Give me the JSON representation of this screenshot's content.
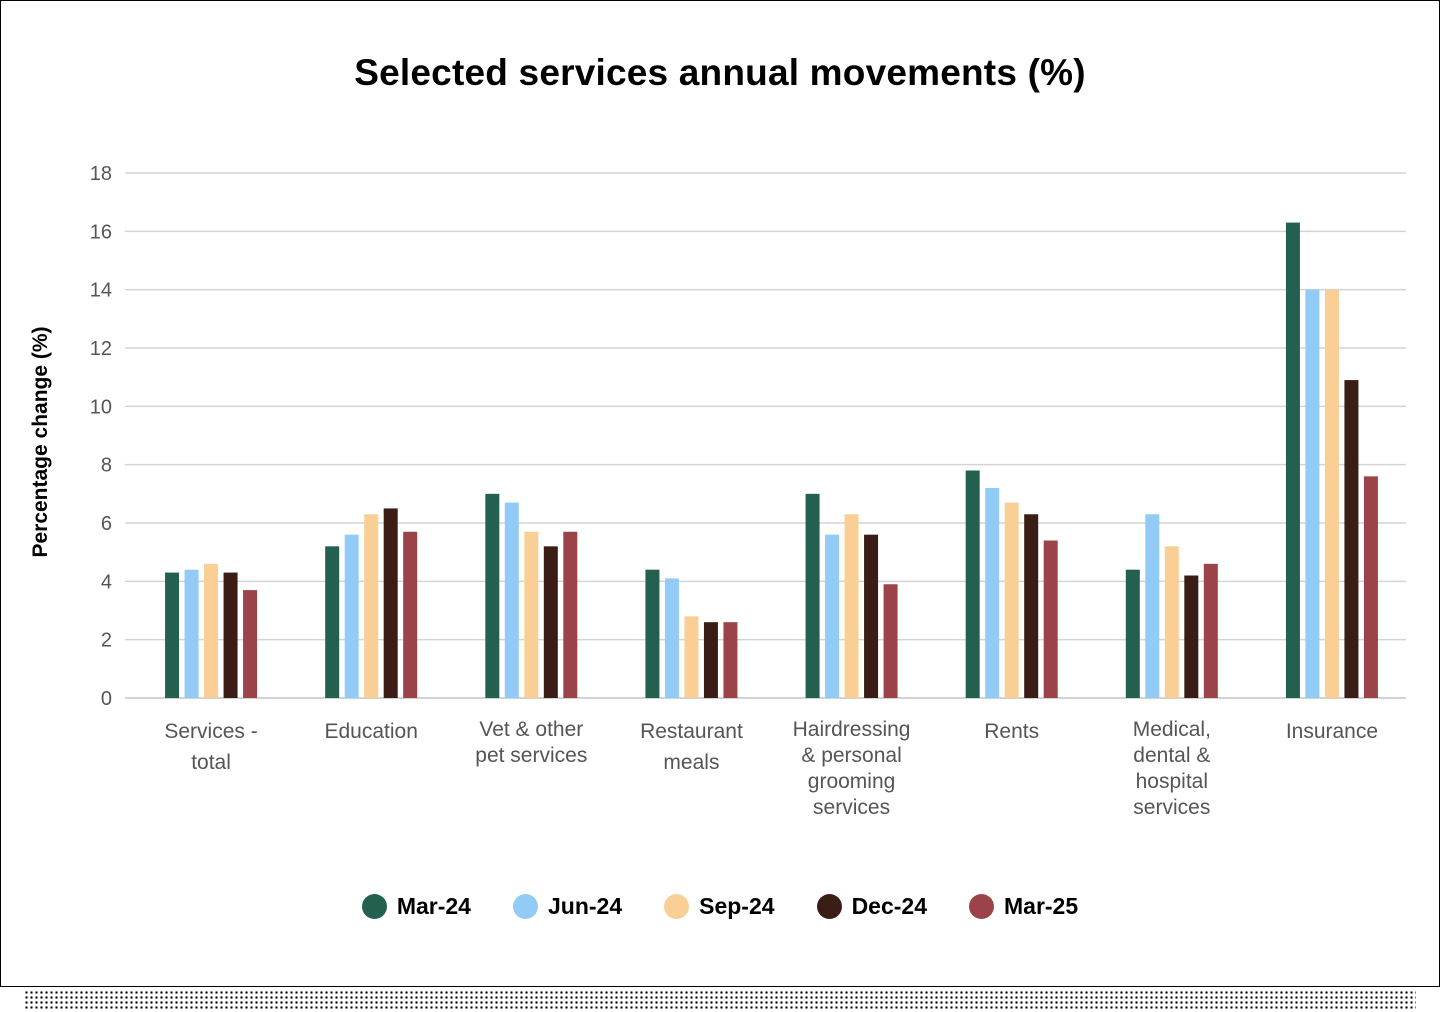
{
  "chart_data": {
    "type": "bar",
    "title": "Selected services annual movements (%)",
    "xlabel": "",
    "ylabel": "Percentage change (%)",
    "ylim": [
      0,
      18
    ],
    "yticks": [
      0,
      2,
      4,
      6,
      8,
      10,
      12,
      14,
      16,
      18
    ],
    "grid": true,
    "legend_position": "bottom",
    "categories": [
      [
        "Services -",
        "total"
      ],
      [
        "Education"
      ],
      [
        "Vet & other",
        "pet services"
      ],
      [
        "Restaurant",
        "meals"
      ],
      [
        "Hairdressing",
        "& personal",
        "grooming",
        "services"
      ],
      [
        "Rents"
      ],
      [
        "Medical,",
        "dental &",
        "hospital",
        "services"
      ],
      [
        "Insurance"
      ]
    ],
    "series": [
      {
        "name": "Mar-24",
        "color": "#23604f",
        "values": [
          4.3,
          5.2,
          7.0,
          4.4,
          7.0,
          7.8,
          4.4,
          16.3
        ]
      },
      {
        "name": "Jun-24",
        "color": "#93cbf7",
        "values": [
          4.4,
          5.6,
          6.7,
          4.1,
          5.6,
          7.2,
          6.3,
          14.0
        ]
      },
      {
        "name": "Sep-24",
        "color": "#f9cf95",
        "values": [
          4.6,
          6.3,
          5.7,
          2.8,
          6.3,
          6.7,
          5.2,
          14.0
        ]
      },
      {
        "name": "Dec-24",
        "color": "#3a1e16",
        "values": [
          4.3,
          6.5,
          5.2,
          2.6,
          5.6,
          6.3,
          4.2,
          10.9
        ]
      },
      {
        "name": "Mar-25",
        "color": "#9c4349",
        "values": [
          3.7,
          5.7,
          5.7,
          2.6,
          3.9,
          5.4,
          4.6,
          7.6
        ]
      }
    ]
  }
}
